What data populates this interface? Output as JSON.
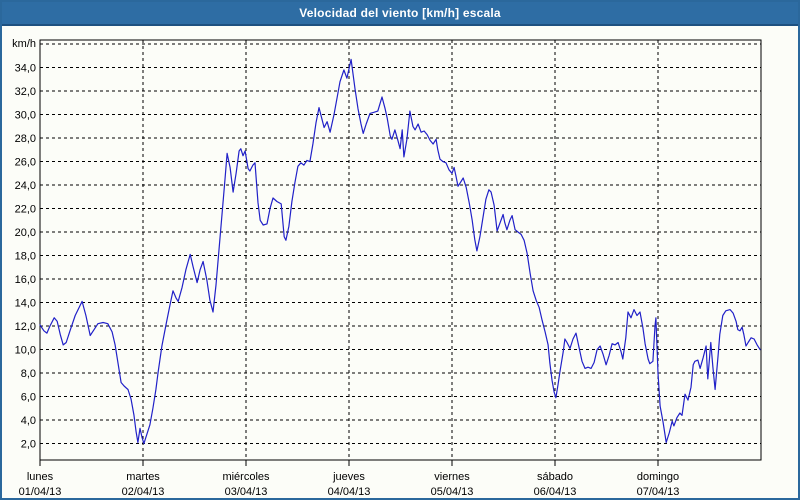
{
  "window": {
    "title": "Velocidad del viento [km/h] escala"
  },
  "colors": {
    "title_bar": "#2e6da4",
    "title_bar_edge": "#1e5180",
    "frame_border": "#2b689c",
    "background": "#fcfdf8",
    "grid": "#000000",
    "line": "#2121c8",
    "text": "#000000"
  },
  "chart_data": {
    "type": "line",
    "title": "Velocidad del viento [km/h] escala",
    "unit_label": "km/h",
    "grid": true,
    "legend_position": "none",
    "x_axis": {
      "unit": "hours",
      "range": [
        0,
        168
      ],
      "day_ticks": [
        {
          "name": "lunes",
          "date": "01/04/13",
          "hour": 0
        },
        {
          "name": "martes",
          "date": "02/04/13",
          "hour": 24
        },
        {
          "name": "miércoles",
          "date": "03/04/13",
          "hour": 48
        },
        {
          "name": "jueves",
          "date": "04/04/13",
          "hour": 72
        },
        {
          "name": "viernes",
          "date": "05/04/13",
          "hour": 96
        },
        {
          "name": "sábado",
          "date": "06/04/13",
          "hour": 120
        },
        {
          "name": "domingo",
          "date": "07/04/13",
          "hour": 144
        }
      ]
    },
    "y_axis": {
      "ylabel": "km/h",
      "range": [
        0.6,
        36.35
      ],
      "grid_step": 2,
      "grid_min": 2,
      "grid_max": 36,
      "labeled_min": 2,
      "labeled_max": 34,
      "decimal_separator": ","
    },
    "series": [
      {
        "name": "Velocidad del viento",
        "color": "#2121c8",
        "points": [
          [
            0,
            12.1
          ],
          [
            0.9,
            11.6
          ],
          [
            1.6,
            11.4
          ],
          [
            2.3,
            12
          ],
          [
            3.3,
            12.7
          ],
          [
            4,
            12.4
          ],
          [
            4.7,
            11.3
          ],
          [
            5.4,
            10.4
          ],
          [
            6.1,
            10.6
          ],
          [
            7,
            11.6
          ],
          [
            8.2,
            12.9
          ],
          [
            9.8,
            14.1
          ],
          [
            10.7,
            12.9
          ],
          [
            11.7,
            11.2
          ],
          [
            12.6,
            11.7
          ],
          [
            13.5,
            12.2
          ],
          [
            14.7,
            12.3
          ],
          [
            15.8,
            12.2
          ],
          [
            16.8,
            11.5
          ],
          [
            17.5,
            10.4
          ],
          [
            18.2,
            8.8
          ],
          [
            18.9,
            7.2
          ],
          [
            19.6,
            6.9
          ],
          [
            20.5,
            6.6
          ],
          [
            21.2,
            5.8
          ],
          [
            21.9,
            4.4
          ],
          [
            22.4,
            3
          ],
          [
            22.8,
            2.1
          ],
          [
            23.3,
            3.3
          ],
          [
            23.8,
            2.5
          ],
          [
            24.2,
            2
          ],
          [
            24.9,
            2.8
          ],
          [
            25.6,
            3.6
          ],
          [
            26.3,
            5
          ],
          [
            27,
            6.6
          ],
          [
            27.5,
            8
          ],
          [
            28.4,
            10.3
          ],
          [
            29.4,
            12.2
          ],
          [
            30.3,
            13.8
          ],
          [
            31,
            15
          ],
          [
            31.7,
            14.4
          ],
          [
            32.2,
            14.1
          ],
          [
            33.1,
            15.3
          ],
          [
            34,
            16.8
          ],
          [
            35,
            18.1
          ],
          [
            35.7,
            17
          ],
          [
            36.6,
            15.7
          ],
          [
            37.3,
            16.8
          ],
          [
            38,
            17.5
          ],
          [
            38.9,
            15.9
          ],
          [
            39.6,
            14.2
          ],
          [
            40.3,
            13.2
          ],
          [
            41,
            15.5
          ],
          [
            41.7,
            18.5
          ],
          [
            42.4,
            21.5
          ],
          [
            43.1,
            24.5
          ],
          [
            43.6,
            26.7
          ],
          [
            44.3,
            25.5
          ],
          [
            45,
            23.4
          ],
          [
            45.7,
            25
          ],
          [
            46.4,
            26.9
          ],
          [
            46.8,
            27.1
          ],
          [
            47.3,
            26.5
          ],
          [
            47.8,
            26.9
          ],
          [
            48.5,
            25.4
          ],
          [
            48.9,
            25.2
          ],
          [
            49.6,
            25.7
          ],
          [
            50.1,
            25.9
          ],
          [
            50.8,
            22.5
          ],
          [
            51.3,
            21
          ],
          [
            52,
            20.6
          ],
          [
            52.9,
            20.7
          ],
          [
            53.6,
            22
          ],
          [
            54.3,
            22.9
          ],
          [
            55.2,
            22.6
          ],
          [
            56.2,
            22.4
          ],
          [
            56.9,
            19.6
          ],
          [
            57.3,
            19.3
          ],
          [
            58,
            20.5
          ],
          [
            58.7,
            22.6
          ],
          [
            59.4,
            24.2
          ],
          [
            60.1,
            25.6
          ],
          [
            60.8,
            25.9
          ],
          [
            61.5,
            25.7
          ],
          [
            62.2,
            26.1
          ],
          [
            62.9,
            26
          ],
          [
            63.6,
            27.5
          ],
          [
            64.3,
            29.3
          ],
          [
            65,
            30.6
          ],
          [
            65.7,
            29.6
          ],
          [
            66.2,
            28.9
          ],
          [
            66.9,
            29.4
          ],
          [
            67.6,
            28.5
          ],
          [
            68.5,
            30
          ],
          [
            69.2,
            31.4
          ],
          [
            69.9,
            32.8
          ],
          [
            70.8,
            33.8
          ],
          [
            71.5,
            33.1
          ],
          [
            72.5,
            34.7
          ],
          [
            73.4,
            32.2
          ],
          [
            74.1,
            30.5
          ],
          [
            74.8,
            29.2
          ],
          [
            75.3,
            28.4
          ],
          [
            76,
            29.2
          ],
          [
            76.9,
            30.1
          ],
          [
            77.8,
            30.2
          ],
          [
            78.7,
            30.3
          ],
          [
            79.7,
            31.5
          ],
          [
            80.4,
            30.5
          ],
          [
            80.9,
            29.7
          ],
          [
            81.6,
            28.2
          ],
          [
            82,
            27.9
          ],
          [
            82.7,
            28.7
          ],
          [
            83.4,
            27.8
          ],
          [
            83.9,
            27.1
          ],
          [
            84.4,
            28.7
          ],
          [
            84.8,
            26.4
          ],
          [
            85.5,
            27.9
          ],
          [
            86.2,
            30.3
          ],
          [
            86.9,
            29
          ],
          [
            87.4,
            28.7
          ],
          [
            88.1,
            29.2
          ],
          [
            88.8,
            28.5
          ],
          [
            89.5,
            28.6
          ],
          [
            90.2,
            28.3
          ],
          [
            90.9,
            27.8
          ],
          [
            91.6,
            27.5
          ],
          [
            92.3,
            27.9
          ],
          [
            92.7,
            27
          ],
          [
            93.2,
            26.2
          ],
          [
            93.9,
            26
          ],
          [
            94.6,
            25.9
          ],
          [
            95.3,
            25.3
          ],
          [
            96,
            25
          ],
          [
            96.5,
            25.5
          ],
          [
            96.9,
            24.8
          ],
          [
            97.4,
            23.9
          ],
          [
            98.1,
            24.3
          ],
          [
            98.6,
            24.6
          ],
          [
            99.3,
            23.8
          ],
          [
            100,
            22.5
          ],
          [
            100.7,
            21
          ],
          [
            101.3,
            19.4
          ],
          [
            101.8,
            18.4
          ],
          [
            102.5,
            19.6
          ],
          [
            103.2,
            21.2
          ],
          [
            103.9,
            22.8
          ],
          [
            104.6,
            23.6
          ],
          [
            105.1,
            23.4
          ],
          [
            105.8,
            22.3
          ],
          [
            106.5,
            20.1
          ],
          [
            107.2,
            20.8
          ],
          [
            107.9,
            21.5
          ],
          [
            108.3,
            20.8
          ],
          [
            108.8,
            20.2
          ],
          [
            109.5,
            21
          ],
          [
            110,
            21.4
          ],
          [
            110.7,
            20.2
          ],
          [
            111.4,
            20
          ],
          [
            112.1,
            19.8
          ],
          [
            112.8,
            19.3
          ],
          [
            113.5,
            18.2
          ],
          [
            114.2,
            16.5
          ],
          [
            114.9,
            15
          ],
          [
            115.6,
            14.2
          ],
          [
            116.3,
            13.6
          ],
          [
            117,
            12.5
          ],
          [
            117.7,
            11.5
          ],
          [
            118.4,
            10.4
          ],
          [
            118.8,
            8.9
          ],
          [
            119.3,
            7.4
          ],
          [
            119.8,
            6.4
          ],
          [
            120.2,
            5.9
          ],
          [
            120.7,
            7
          ],
          [
            121.2,
            8.2
          ],
          [
            121.9,
            9.8
          ],
          [
            122.3,
            10.9
          ],
          [
            122.8,
            10.6
          ],
          [
            123.5,
            10.1
          ],
          [
            124.2,
            10.9
          ],
          [
            124.9,
            11.4
          ],
          [
            125.6,
            10.2
          ],
          [
            126.3,
            9
          ],
          [
            127,
            8.4
          ],
          [
            127.7,
            8.5
          ],
          [
            128.4,
            8.4
          ],
          [
            129.1,
            8.9
          ],
          [
            129.8,
            10
          ],
          [
            130.5,
            10.3
          ],
          [
            131.2,
            9.6
          ],
          [
            131.9,
            8.7
          ],
          [
            132.6,
            9.5
          ],
          [
            133.3,
            10.5
          ],
          [
            134,
            10.4
          ],
          [
            134.7,
            10.6
          ],
          [
            135.4,
            9.8
          ],
          [
            135.8,
            9.2
          ],
          [
            136.5,
            11
          ],
          [
            137,
            13.2
          ],
          [
            137.7,
            12.7
          ],
          [
            138.4,
            13.4
          ],
          [
            139.1,
            12.9
          ],
          [
            139.8,
            13.2
          ],
          [
            140.5,
            11.8
          ],
          [
            141,
            10.5
          ],
          [
            141.7,
            9.2
          ],
          [
            142.1,
            8.8
          ],
          [
            142.8,
            9
          ],
          [
            143.3,
            12
          ],
          [
            143.5,
            12.7
          ],
          [
            144,
            8
          ],
          [
            144.5,
            5.2
          ],
          [
            145.2,
            3.8
          ],
          [
            145.9,
            2.1
          ],
          [
            146.6,
            2.9
          ],
          [
            147.3,
            3.9
          ],
          [
            147.7,
            3.5
          ],
          [
            148.4,
            4.2
          ],
          [
            149.1,
            4.6
          ],
          [
            149.6,
            4.4
          ],
          [
            150.3,
            6.2
          ],
          [
            151,
            5.7
          ],
          [
            151.7,
            6.8
          ],
          [
            152.2,
            8.7
          ],
          [
            152.6,
            9
          ],
          [
            153.3,
            9.1
          ],
          [
            153.8,
            8.4
          ],
          [
            154.5,
            9.3
          ],
          [
            155.2,
            10.3
          ],
          [
            155.6,
            7.5
          ],
          [
            156.3,
            10.6
          ],
          [
            156.8,
            8.5
          ],
          [
            157.3,
            6.6
          ],
          [
            158,
            9.5
          ],
          [
            158.4,
            11.3
          ],
          [
            159.1,
            12.9
          ],
          [
            159.8,
            13.3
          ],
          [
            160.8,
            13.4
          ],
          [
            161.5,
            13.1
          ],
          [
            162.2,
            12.4
          ],
          [
            162.6,
            11.7
          ],
          [
            163.1,
            11.6
          ],
          [
            163.6,
            11.9
          ],
          [
            164,
            11.3
          ],
          [
            164.5,
            10.3
          ],
          [
            165,
            10.6
          ],
          [
            165.7,
            11
          ],
          [
            166.4,
            10.9
          ],
          [
            167.1,
            10.4
          ],
          [
            167.8,
            10
          ]
        ]
      }
    ]
  }
}
